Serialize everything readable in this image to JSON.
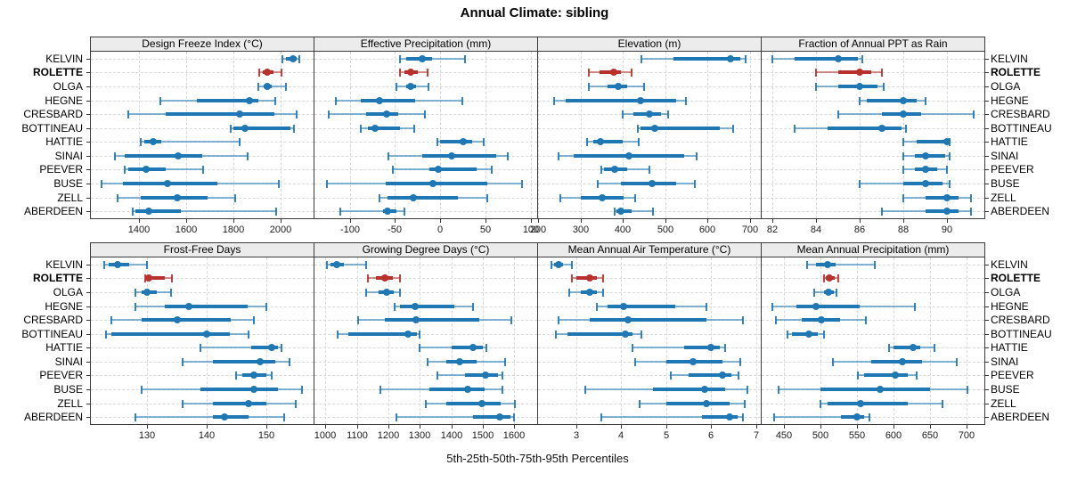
{
  "title": "Annual Climate: sibling",
  "xlabel": "5th-25th-50th-75th-95th Percentiles",
  "colors": {
    "accent": "#1F77B4",
    "highlight": "#B8312C",
    "strip_bg": "#ECECEC",
    "panel_border": "#3B3B3B",
    "gridline": "#D8D8D8",
    "tick": "#333333"
  },
  "series": [
    "KELVIN",
    "ROLETTE",
    "OLGA",
    "HEGNE",
    "CRESBARD",
    "BOTTINEAU",
    "HATTIE",
    "SINAI",
    "PEEVER",
    "BUSE",
    "ZELL",
    "ABERDEEN"
  ],
  "highlighted_series": "ROLETTE",
  "chart_data": {
    "type": "dot-whisker (percentile range plot, 2x4 lattice panels)",
    "percentiles": [
      "5th",
      "25th",
      "50th",
      "75th",
      "95th"
    ],
    "legend_position": "none",
    "grid": "dashed",
    "panels": [
      {
        "title": "Design Freeze Index (°C)",
        "xlim": [
          1195,
          2140
        ],
        "ticks": [
          1400,
          1600,
          1800,
          2000
        ],
        "values": [
          [
            2006,
            2023,
            2052,
            2070,
            2081
          ],
          [
            1911,
            1923,
            1945,
            1970,
            2004
          ],
          [
            1907,
            1927,
            1942,
            1962,
            2021
          ],
          [
            1490,
            1645,
            1868,
            1905,
            1978
          ],
          [
            1355,
            1512,
            1828,
            1975,
            2068
          ],
          [
            1790,
            1800,
            1849,
            2042,
            2058
          ],
          [
            1405,
            1420,
            1458,
            1490,
            1828
          ],
          [
            1297,
            1340,
            1564,
            1668,
            1860
          ],
          [
            1338,
            1352,
            1430,
            1512,
            1670
          ],
          [
            1240,
            1332,
            1519,
            1732,
            1992
          ],
          [
            1310,
            1406,
            1560,
            1690,
            1806
          ],
          [
            1374,
            1384,
            1442,
            1578,
            1982
          ]
        ]
      },
      {
        "title": "Effective Precipitation (mm)",
        "xlim": [
          -139,
          107
        ],
        "ticks": [
          -100,
          -50,
          0,
          50,
          100
        ],
        "values": [
          [
            -45,
            -38,
            -20,
            -9,
            27
          ],
          [
            -45,
            -40,
            -33,
            -25,
            -14
          ],
          [
            -48,
            -38,
            -33,
            -27,
            -13
          ],
          [
            -115,
            -88,
            -67,
            -28,
            24
          ],
          [
            -123,
            -82,
            -59,
            -47,
            -17
          ],
          [
            -88,
            -80,
            -72,
            -45,
            -29
          ],
          [
            -3,
            0,
            25,
            35,
            48
          ],
          [
            -57,
            -20,
            13,
            62,
            75
          ],
          [
            -52,
            -12,
            -2,
            40,
            57
          ],
          [
            -125,
            -60,
            -8,
            52,
            90
          ],
          [
            -67,
            -58,
            -30,
            20,
            52
          ],
          [
            -110,
            -63,
            -58,
            -48,
            -40
          ]
        ]
      },
      {
        "title": "Elevation (m)",
        "xlim": [
          200,
          726
        ],
        "ticks": [
          200,
          300,
          400,
          500,
          600,
          700
        ],
        "values": [
          [
            445,
            520,
            655,
            678,
            690
          ],
          [
            320,
            345,
            378,
            396,
            420
          ],
          [
            320,
            365,
            390,
            412,
            450
          ],
          [
            238,
            265,
            442,
            525,
            550
          ],
          [
            400,
            425,
            462,
            490,
            508
          ],
          [
            435,
            442,
            475,
            630,
            660
          ],
          [
            315,
            330,
            348,
            400,
            437
          ],
          [
            248,
            285,
            415,
            545,
            575
          ],
          [
            350,
            356,
            380,
            410,
            463
          ],
          [
            340,
            395,
            470,
            525,
            570
          ],
          [
            253,
            300,
            352,
            400,
            430
          ],
          [
            380,
            385,
            395,
            420,
            472
          ]
        ]
      },
      {
        "title": "Fraction of Annual PPT as Rain",
        "xlim": [
          81.5,
          91.7
        ],
        "ticks": [
          82,
          84,
          86,
          88,
          90
        ],
        "values": [
          [
            82,
            83,
            85,
            85.9,
            86.1
          ],
          [
            84,
            85,
            86,
            86.5,
            87
          ],
          [
            84,
            85,
            86,
            86.8,
            87.1
          ],
          [
            86,
            86.3,
            88,
            88.6,
            89
          ],
          [
            85,
            87,
            88,
            88.8,
            91.2
          ],
          [
            83,
            84.5,
            87,
            87.9,
            88.1
          ],
          [
            88,
            88.6,
            90,
            90,
            90.1
          ],
          [
            88,
            88.5,
            89,
            89.9,
            90.1
          ],
          [
            88,
            88.5,
            89,
            89.5,
            90
          ],
          [
            86,
            88,
            89,
            89.8,
            90.1
          ],
          [
            88,
            89,
            90,
            90.5,
            91.1
          ],
          [
            87,
            89,
            90,
            90.5,
            91.1
          ]
        ]
      },
      {
        "title": "Frost-Free Days",
        "xlim": [
          120.5,
          158
        ],
        "ticks": [
          130,
          140,
          150
        ],
        "values": [
          [
            122.8,
            123.5,
            125,
            127,
            130
          ],
          [
            129.6,
            130,
            130.3,
            133,
            134.2
          ],
          [
            128,
            129,
            130,
            131.5,
            134
          ],
          [
            128,
            133,
            137,
            147,
            150
          ],
          [
            124,
            129,
            135,
            144,
            148
          ],
          [
            123,
            124,
            140,
            144,
            147
          ],
          [
            139,
            147.5,
            151,
            152,
            152.6
          ],
          [
            136,
            141,
            149,
            151.5,
            154
          ],
          [
            145,
            146,
            148,
            150,
            151
          ],
          [
            129,
            139,
            148,
            152,
            156
          ],
          [
            136,
            141,
            147,
            150,
            155
          ],
          [
            128,
            141,
            143,
            147,
            153
          ]
        ]
      },
      {
        "title": "Growing Degree Days (°C)",
        "xlim": [
          965,
          1673
        ],
        "ticks": [
          1000,
          1100,
          1200,
          1300,
          1400,
          1500,
          1600
        ],
        "values": [
          [
            1005,
            1015,
            1035,
            1057,
            1130
          ],
          [
            1135,
            1160,
            1190,
            1215,
            1237
          ],
          [
            1130,
            1170,
            1195,
            1218,
            1236
          ],
          [
            1220,
            1237,
            1285,
            1410,
            1470
          ],
          [
            1105,
            1190,
            1288,
            1490,
            1590
          ],
          [
            1040,
            1072,
            1262,
            1290,
            1300
          ],
          [
            1300,
            1400,
            1468,
            1500,
            1512
          ],
          [
            1324,
            1385,
            1428,
            1480,
            1572
          ],
          [
            1357,
            1443,
            1508,
            1548,
            1563
          ],
          [
            1174,
            1330,
            1452,
            1505,
            1562
          ],
          [
            1320,
            1385,
            1498,
            1558,
            1602
          ],
          [
            1226,
            1470,
            1555,
            1588,
            1600
          ]
        ]
      },
      {
        "title": "Mean Annual Air Temperature (°C)",
        "xlim": [
          2.15,
          7.1
        ],
        "ticks": [
          3,
          4,
          5,
          6,
          7
        ],
        "values": [
          [
            2.45,
            2.5,
            2.6,
            2.7,
            2.9
          ],
          [
            2.9,
            3.0,
            3.3,
            3.45,
            3.6
          ],
          [
            2.85,
            3.1,
            3.3,
            3.45,
            3.6
          ],
          [
            3.45,
            3.7,
            4.05,
            5.2,
            5.9
          ],
          [
            2.6,
            3.3,
            4.15,
            5.9,
            6.7
          ],
          [
            2.55,
            2.8,
            4.1,
            4.25,
            4.45
          ],
          [
            4.25,
            5.4,
            6.0,
            6.2,
            6.3
          ],
          [
            4.3,
            5.0,
            5.6,
            6.25,
            6.65
          ],
          [
            5.1,
            5.5,
            6.25,
            6.45,
            6.6
          ],
          [
            3.2,
            4.7,
            5.85,
            6.3,
            6.8
          ],
          [
            4.4,
            5.0,
            5.9,
            6.4,
            6.75
          ],
          [
            3.55,
            5.8,
            6.4,
            6.6,
            6.7
          ]
        ]
      },
      {
        "title": "Mean Annual Precipitation (mm)",
        "xlim": [
          420,
          725
        ],
        "ticks": [
          450,
          500,
          550,
          600,
          650,
          700
        ],
        "values": [
          [
            482,
            495,
            510,
            522,
            575
          ],
          [
            505,
            508,
            513,
            520,
            525
          ],
          [
            492,
            505,
            512,
            518,
            522
          ],
          [
            435,
            468,
            494,
            555,
            630
          ],
          [
            440,
            475,
            502,
            527,
            563
          ],
          [
            455,
            462,
            485,
            497,
            505
          ],
          [
            595,
            600,
            628,
            637,
            657
          ],
          [
            517,
            570,
            613,
            640,
            687
          ],
          [
            552,
            560,
            603,
            620,
            632
          ],
          [
            443,
            500,
            582,
            650,
            702
          ],
          [
            500,
            510,
            556,
            620,
            668
          ],
          [
            437,
            528,
            551,
            560,
            568
          ]
        ]
      }
    ]
  }
}
